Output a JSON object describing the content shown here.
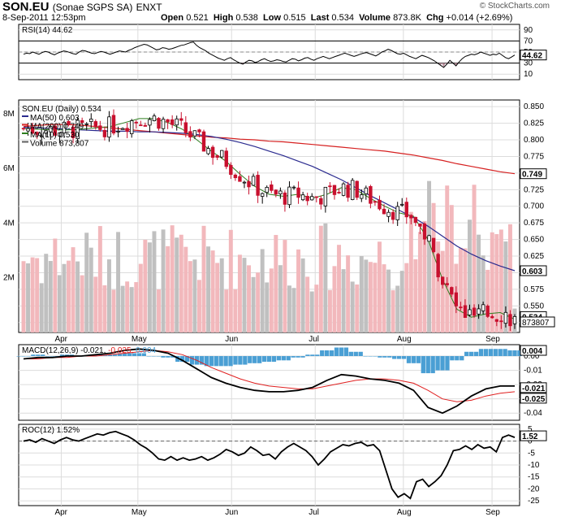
{
  "header": {
    "symbol": "SON.EU",
    "name": "(Sonae SGPS SA)",
    "exchange": "ENXT",
    "date": "8-Sep-2011 12:53pm",
    "open_label": "Open",
    "open": "0.521",
    "high_label": "High",
    "high": "0.538",
    "low_label": "Low",
    "low": "0.515",
    "last_label": "Last",
    "last": "0.534",
    "volume_label": "Volume",
    "volume": "873.8K",
    "chg_label": "Chg",
    "chg": "+0.014 (+2.69%)",
    "watermark": "© StockCharts.com"
  },
  "colors": {
    "up": "#000000",
    "down": "#c8102e",
    "ma50": "#2b2b8f",
    "ma200": "#d62020",
    "ma10": "#2e7d1e",
    "vol_up": "#c0c0c0",
    "vol_down": "#f2b8bc",
    "hist": "#4a9fd4",
    "macd_signal": "#e02020",
    "rsi_fill": "#b98c9a"
  },
  "months": [
    "Apr",
    "May",
    "Jun",
    "Jul",
    "Aug",
    "Sep"
  ],
  "chart_data": [
    {
      "type": "line",
      "panel": "rsi",
      "label": "RSI(14)",
      "value": "44.62",
      "ylim": [
        0,
        100
      ],
      "ticks": [
        10,
        30,
        50,
        70,
        90
      ],
      "tick_labels": [
        "10",
        "30",
        "50",
        "70",
        "90"
      ],
      "levels": [
        30,
        70
      ],
      "last_label": "44.62",
      "values": [
        46,
        48,
        47,
        50,
        48,
        46,
        49,
        51,
        50,
        47,
        45,
        48,
        50,
        52,
        51,
        49,
        47,
        46,
        50,
        53,
        52,
        50,
        48,
        47,
        49,
        51,
        50,
        48,
        46,
        48,
        50,
        52,
        51,
        50,
        53,
        55,
        58,
        60,
        62,
        64,
        63,
        60,
        57,
        54,
        55,
        58,
        57,
        55,
        56,
        58,
        60,
        62,
        63,
        65,
        67,
        68,
        62,
        58,
        55,
        52,
        48,
        45,
        42,
        39,
        37,
        35,
        38,
        40,
        36,
        33,
        30,
        28,
        32,
        35,
        34,
        31,
        33,
        36,
        38,
        35,
        33,
        34,
        36,
        35,
        33,
        32,
        35,
        38,
        37,
        34,
        36,
        39,
        40,
        37,
        35,
        38,
        40,
        42,
        40,
        38,
        40,
        42,
        44,
        46,
        48,
        46,
        44,
        42,
        44,
        46,
        48,
        49,
        47,
        45,
        43,
        46,
        50,
        52,
        55,
        53,
        50,
        47,
        46,
        48,
        45,
        42,
        40,
        38,
        41,
        44,
        42,
        40,
        37,
        34,
        30,
        26,
        22,
        28,
        35,
        30,
        25,
        32,
        38,
        42,
        44,
        46,
        45,
        47,
        50,
        48,
        46,
        44,
        46,
        45,
        48,
        44,
        40,
        38,
        41,
        44.62
      ]
    },
    {
      "type": "candlestick",
      "panel": "price",
      "label": "SON.EU (Daily) 0.534",
      "ylim": [
        0.51,
        0.86
      ],
      "ticks": [
        0.525,
        0.55,
        0.575,
        0.6,
        0.625,
        0.65,
        0.675,
        0.7,
        0.725,
        0.75,
        0.775,
        0.8,
        0.825,
        0.85
      ],
      "tick_labels": [
        "0.525",
        "0.550",
        "0.575",
        "0.600",
        "0.625",
        "0.650",
        "0.675",
        "0.700",
        "0.725",
        "0.750",
        "0.775",
        "0.800",
        "0.825",
        "0.850"
      ],
      "legend": [
        {
          "text": "MA(50) 0.603",
          "color": "#2b2b8f"
        },
        {
          "text": "MA(200) 0.749",
          "color": "#d62020"
        },
        {
          "text": "MA(10) 0.530",
          "color": "#2e7d1e"
        },
        {
          "text": "Volume 873,807",
          "color": "#606060"
        }
      ],
      "last_labels": {
        "last": "0.534",
        "ma50": "0.603",
        "ma200": "0.749",
        "volume": "873807"
      },
      "ma50_values": [
        0.819,
        0.818,
        0.817,
        0.816,
        0.815,
        0.814,
        0.813,
        0.813,
        0.812,
        0.812,
        0.811,
        0.81,
        0.808,
        0.805,
        0.801,
        0.796,
        0.79,
        0.783,
        0.776,
        0.768,
        0.76,
        0.75,
        0.74,
        0.728,
        0.716,
        0.705,
        0.694,
        0.683,
        0.67,
        0.655,
        0.64,
        0.628,
        0.618,
        0.61,
        0.603
      ],
      "ma200_values": [
        0.82,
        0.822,
        0.823,
        0.823,
        0.822,
        0.82,
        0.818,
        0.816,
        0.814,
        0.812,
        0.81,
        0.808,
        0.806,
        0.804,
        0.803,
        0.801,
        0.8,
        0.798,
        0.797,
        0.795,
        0.793,
        0.791,
        0.789,
        0.787,
        0.785,
        0.783,
        0.78,
        0.777,
        0.773,
        0.769,
        0.764,
        0.76,
        0.756,
        0.752,
        0.749
      ],
      "ma10_values": [
        0.817,
        0.816,
        0.815,
        0.815,
        0.816,
        0.818,
        0.82,
        0.826,
        0.832,
        0.832,
        0.826,
        0.816,
        0.8,
        0.783,
        0.768,
        0.748,
        0.73,
        0.718,
        0.715,
        0.718,
        0.712,
        0.718,
        0.728,
        0.725,
        0.712,
        0.7,
        0.69,
        0.685,
        0.65,
        0.59,
        0.545,
        0.533,
        0.538,
        0.54,
        0.53
      ]
    },
    {
      "type": "bar",
      "panel": "volume",
      "ylim": [
        0,
        8500000
      ],
      "ticks": [
        2000000,
        4000000,
        6000000,
        8000000
      ],
      "tick_labels": [
        "2M",
        "4M",
        "6M",
        "8M"
      ]
    },
    {
      "type": "bar+line",
      "panel": "macd",
      "label_prefix": "MACD(12,26,9)",
      "macd_label": "-0.021,",
      "signal_label": "-0.025,",
      "hist_label": "0.004",
      "ylim": [
        -0.045,
        0.008
      ],
      "ticks": [
        0.0,
        -0.01,
        -0.02,
        -0.03,
        -0.04
      ],
      "tick_labels": [
        "0.00",
        "-0.01",
        "-0.02",
        "-0.03",
        "-0.04"
      ],
      "last_labels": {
        "hist": "0.004",
        "macd": "-0.021",
        "signal": "-0.025"
      },
      "macd_values": [
        -0.002,
        -0.001,
        -0.001,
        0.0,
        0.0,
        0.001,
        0.002,
        0.004,
        0.005,
        0.004,
        0.002,
        -0.003,
        -0.009,
        -0.015,
        -0.019,
        -0.022,
        -0.024,
        -0.025,
        -0.025,
        -0.024,
        -0.022,
        -0.017,
        -0.013,
        -0.014,
        -0.016,
        -0.017,
        -0.019,
        -0.024,
        -0.036,
        -0.04,
        -0.035,
        -0.028,
        -0.023,
        -0.021,
        -0.021
      ],
      "signal_values": [
        -0.002,
        -0.002,
        -0.001,
        -0.001,
        0.0,
        0.0,
        0.001,
        0.002,
        0.003,
        0.004,
        0.003,
        0.001,
        -0.003,
        -0.008,
        -0.012,
        -0.016,
        -0.019,
        -0.021,
        -0.022,
        -0.023,
        -0.023,
        -0.021,
        -0.019,
        -0.017,
        -0.016,
        -0.016,
        -0.017,
        -0.019,
        -0.024,
        -0.03,
        -0.032,
        -0.031,
        -0.028,
        -0.026,
        -0.025
      ],
      "hist_values": [
        0.0,
        0.001,
        0.0,
        0.001,
        0.0,
        0.001,
        0.001,
        0.002,
        0.002,
        0.0,
        -0.001,
        -0.004,
        -0.006,
        -0.007,
        -0.007,
        -0.006,
        -0.005,
        -0.004,
        -0.003,
        -0.001,
        0.001,
        0.004,
        0.006,
        0.003,
        0.0,
        -0.001,
        -0.002,
        -0.005,
        -0.012,
        -0.01,
        -0.003,
        0.003,
        0.005,
        0.005,
        0.004
      ]
    },
    {
      "type": "line",
      "panel": "roc",
      "label": "ROC(12) 1.52%",
      "ylim": [
        -27,
        7
      ],
      "ticks": [
        5,
        0,
        -5,
        -10,
        -15,
        -20,
        -25
      ],
      "tick_labels": [
        "5",
        "0",
        "-5",
        "-10",
        "-15",
        "-20",
        "-25"
      ],
      "last_label": "1.52",
      "values": [
        0.0,
        0.5,
        -0.5,
        1.0,
        0.0,
        -1.0,
        0.5,
        1.5,
        0.5,
        0.0,
        1.0,
        2.0,
        3.0,
        2.5,
        3.5,
        4.0,
        3.0,
        2.0,
        0.5,
        -1.5,
        -3.0,
        -5.0,
        -7.5,
        -8.0,
        -6.5,
        -8.0,
        -7.0,
        -8.0,
        -7.5,
        -6.5,
        -8.0,
        -7.0,
        -5.5,
        -3.5,
        -4.5,
        -6.0,
        -5.0,
        -2.5,
        -4.0,
        -6.0,
        -5.5,
        -7.5,
        -4.5,
        -2.5,
        -1.0,
        -2.5,
        -4.0,
        -6.5,
        -10.0,
        -7.5,
        -4.5,
        -3.0,
        -1.5,
        -2.0,
        -1.0,
        -0.5,
        -2.0,
        -1.5,
        -4.0,
        -12.0,
        -20.0,
        -23.5,
        -22.0,
        -24.0,
        -17.0,
        -16.0,
        -19.0,
        -17.0,
        -14.5,
        -10.0,
        -4.0,
        -3.5,
        -2.0,
        -3.5,
        -1.5,
        -3.0,
        -2.5,
        -4.5,
        1.5,
        2.5,
        1.52
      ]
    }
  ]
}
